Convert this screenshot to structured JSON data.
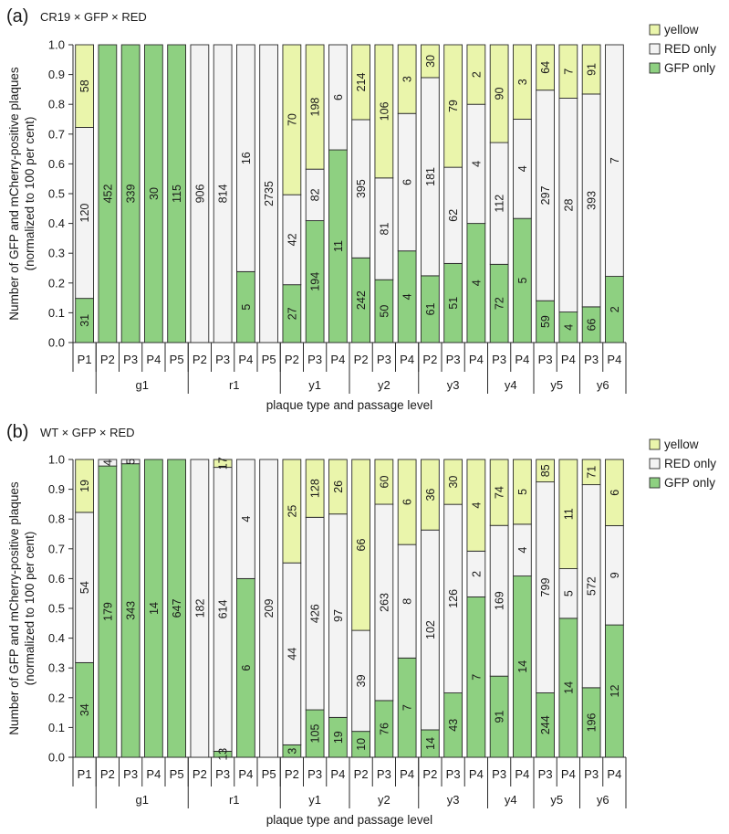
{
  "series_names": [
    "GFP only",
    "RED only",
    "yellow"
  ],
  "colors": {
    "GFP only": "#8ed081",
    "RED only": "#f3f3f3",
    "yellow": "#eaf5ab",
    "stroke": "#2a2a2a"
  },
  "chart_data": [
    {
      "type": "bar",
      "stacked": true,
      "normalized": true,
      "panel_label": "(a)",
      "title": "CR19 × GFP × RED",
      "ylabel": "Number of GFP and mCherry-positive plaques (normalized to 100 per cent)",
      "xlabel": "plaque type and passage level",
      "ylim": [
        0,
        1
      ],
      "yticks": [
        "0.0",
        "0.1",
        "0.2",
        "0.3",
        "0.4",
        "0.5",
        "0.6",
        "0.7",
        "0.8",
        "0.9",
        "1.0"
      ],
      "legend": [
        "yellow",
        "RED only",
        "GFP only"
      ],
      "categories": [
        "P1",
        "P2",
        "P3",
        "P4",
        "P5",
        "P2",
        "P3",
        "P4",
        "P5",
        "P2",
        "P3",
        "P4",
        "P2",
        "P3",
        "P4",
        "P2",
        "P3",
        "P4",
        "P3",
        "P4",
        "P3",
        "P4",
        "P3",
        "P4"
      ],
      "groups": [
        {
          "name": "",
          "count": 1
        },
        {
          "name": "g1",
          "count": 4
        },
        {
          "name": "r1",
          "count": 4
        },
        {
          "name": "y1",
          "count": 3
        },
        {
          "name": "y2",
          "count": 3
        },
        {
          "name": "y3",
          "count": 3
        },
        {
          "name": "y4",
          "count": 2
        },
        {
          "name": "y5",
          "count": 2
        },
        {
          "name": "y6",
          "count": 2
        }
      ],
      "series": [
        {
          "name": "GFP only",
          "values": [
            31,
            452,
            339,
            30,
            115,
            0,
            0,
            5,
            0,
            27,
            194,
            11,
            242,
            50,
            4,
            61,
            51,
            4,
            72,
            5,
            59,
            4,
            66,
            2
          ]
        },
        {
          "name": "RED only",
          "values": [
            120,
            0,
            0,
            0,
            0,
            906,
            814,
            16,
            2735,
            42,
            82,
            6,
            395,
            81,
            6,
            181,
            62,
            4,
            112,
            4,
            297,
            28,
            393,
            7
          ]
        },
        {
          "name": "yellow",
          "values": [
            58,
            0,
            0,
            0,
            0,
            0,
            0,
            0,
            0,
            70,
            198,
            0,
            214,
            106,
            3,
            30,
            79,
            2,
            90,
            3,
            64,
            7,
            91,
            0
          ]
        }
      ],
      "labels": [
        [
          "31",
          "120",
          "58"
        ],
        [
          "452",
          "",
          ""
        ],
        [
          "339",
          "",
          ""
        ],
        [
          "30",
          "",
          ""
        ],
        [
          "115",
          "",
          ""
        ],
        [
          "",
          "906",
          ""
        ],
        [
          "",
          "814",
          ""
        ],
        [
          "5",
          "16",
          ""
        ],
        [
          "",
          "2735",
          ""
        ],
        [
          "27",
          "42",
          "70"
        ],
        [
          "194",
          "82",
          "198"
        ],
        [
          "11",
          "6",
          ""
        ],
        [
          "242",
          "395",
          "214"
        ],
        [
          "50",
          "81",
          "106"
        ],
        [
          "4",
          "6",
          "3"
        ],
        [
          "61",
          "181",
          "30"
        ],
        [
          "51",
          "62",
          "79"
        ],
        [
          "4",
          "4",
          "2"
        ],
        [
          "72",
          "112",
          "90"
        ],
        [
          "5",
          "4",
          "3"
        ],
        [
          "59",
          "297",
          "64"
        ],
        [
          "4",
          "28",
          "7"
        ],
        [
          "66",
          "393",
          "91"
        ],
        [
          "2",
          "7",
          ""
        ]
      ]
    },
    {
      "type": "bar",
      "stacked": true,
      "normalized": true,
      "panel_label": "(b)",
      "title": "WT × GFP × RED",
      "ylabel": "Number of GFP and mCherry-positive plaques (normalized to 100 per cent)",
      "xlabel": "plaque type and passage level",
      "ylim": [
        0,
        1
      ],
      "yticks": [
        "0.0",
        "0.1",
        "0.2",
        "0.3",
        "0.4",
        "0.5",
        "0.6",
        "0.7",
        "0.8",
        "0.9",
        "1.0"
      ],
      "legend": [
        "yellow",
        "RED only",
        "GFP only"
      ],
      "categories": [
        "P1",
        "P2",
        "P3",
        "P4",
        "P5",
        "P2",
        "P3",
        "P4",
        "P5",
        "P2",
        "P3",
        "P4",
        "P2",
        "P3",
        "P4",
        "P2",
        "P3",
        "P4",
        "P3",
        "P4",
        "P3",
        "P4",
        "P3",
        "P4"
      ],
      "groups": [
        {
          "name": "",
          "count": 1
        },
        {
          "name": "g1",
          "count": 4
        },
        {
          "name": "r1",
          "count": 4
        },
        {
          "name": "y1",
          "count": 3
        },
        {
          "name": "y2",
          "count": 3
        },
        {
          "name": "y3",
          "count": 3
        },
        {
          "name": "y4",
          "count": 2
        },
        {
          "name": "y5",
          "count": 2
        },
        {
          "name": "y6",
          "count": 2
        }
      ],
      "series": [
        {
          "name": "GFP only",
          "values": [
            34,
            179,
            343,
            14,
            647,
            0,
            13,
            6,
            0,
            3,
            105,
            19,
            10,
            76,
            7,
            14,
            43,
            7,
            91,
            14,
            244,
            14,
            196,
            12
          ]
        },
        {
          "name": "RED only",
          "values": [
            54,
            4,
            5,
            0,
            0,
            182,
            614,
            4,
            209,
            44,
            426,
            97,
            39,
            263,
            8,
            102,
            126,
            2,
            169,
            4,
            799,
            5,
            572,
            9
          ]
        },
        {
          "name": "yellow",
          "values": [
            19,
            0,
            0,
            0,
            0,
            0,
            17,
            0,
            0,
            25,
            128,
            26,
            66,
            60,
            6,
            36,
            30,
            4,
            74,
            5,
            85,
            11,
            71,
            6
          ]
        }
      ],
      "labels": [
        [
          "34",
          "54",
          "19"
        ],
        [
          "179",
          "4",
          ""
        ],
        [
          "343",
          "5",
          ""
        ],
        [
          "14",
          "",
          ""
        ],
        [
          "647",
          "",
          ""
        ],
        [
          "",
          "182",
          ""
        ],
        [
          "13",
          "614",
          "17"
        ],
        [
          "6",
          "4",
          ""
        ],
        [
          "",
          "209",
          ""
        ],
        [
          "3",
          "44",
          "25"
        ],
        [
          "105",
          "426",
          "128"
        ],
        [
          "19",
          "97",
          "26"
        ],
        [
          "10",
          "39",
          "66"
        ],
        [
          "76",
          "263",
          "60"
        ],
        [
          "7",
          "8",
          "6"
        ],
        [
          "14",
          "102",
          "36"
        ],
        [
          "43",
          "126",
          "30"
        ],
        [
          "7",
          "2",
          "4"
        ],
        [
          "91",
          "169",
          "74"
        ],
        [
          "14",
          "4",
          "5"
        ],
        [
          "244",
          "799",
          "85"
        ],
        [
          "14",
          "5",
          "11"
        ],
        [
          "196",
          "572",
          "71"
        ],
        [
          "12",
          "9",
          "6"
        ]
      ]
    }
  ]
}
